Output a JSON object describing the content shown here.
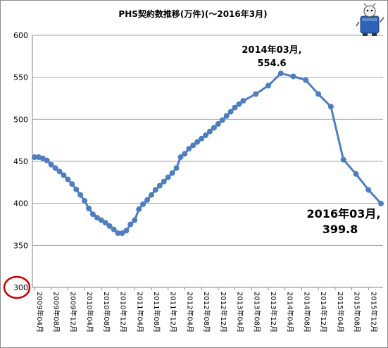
{
  "chart_data": {
    "type": "line",
    "title": "PHS契約数推移(万件)(～2016年3月)",
    "ylim": [
      300,
      600
    ],
    "yticks": [
      300,
      350,
      400,
      450,
      500,
      550,
      600
    ],
    "grid": "horizontal",
    "legend": "none",
    "x_labels": [
      "2009年04月",
      "2009年08月",
      "2009年12月",
      "2010年04月",
      "2010年08月",
      "2010年12月",
      "2011年04月",
      "2011年08月",
      "2011年12月",
      "2012年04月",
      "2012年08月",
      "2012年12月",
      "2013年04月",
      "2013年08月",
      "2013年12月",
      "2014年04月",
      "2014年08月",
      "2014年12月",
      "2015年04月",
      "2015年08月",
      "2015年12月"
    ],
    "series": [
      {
        "x": [
          "2009-04",
          "2009-05",
          "2009-06",
          "2009-07",
          "2009-08",
          "2009-09",
          "2009-10",
          "2009-11",
          "2009-12",
          "2010-01",
          "2010-02",
          "2010-03",
          "2010-04",
          "2010-05",
          "2010-06",
          "2010-07",
          "2010-08",
          "2010-09",
          "2010-10",
          "2010-11",
          "2010-12",
          "2011-01",
          "2011-02",
          "2011-03",
          "2011-04",
          "2011-05",
          "2011-06",
          "2011-07",
          "2011-08",
          "2011-09",
          "2011-10",
          "2011-11",
          "2011-12",
          "2012-01",
          "2012-02",
          "2012-03",
          "2012-04",
          "2012-05",
          "2012-06",
          "2012-07",
          "2012-08",
          "2012-09",
          "2012-10",
          "2012-11",
          "2012-12",
          "2013-01",
          "2013-02",
          "2013-03",
          "2013-04",
          "2013-05",
          "2013-06",
          "2013-09",
          "2013-12",
          "2014-03",
          "2014-06",
          "2014-09",
          "2014-12",
          "2015-03",
          "2015-06",
          "2015-09",
          "2015-12",
          "2016-03"
        ],
        "values": [
          455.0,
          455.0,
          453.5,
          451.0,
          446.0,
          442.0,
          438.0,
          433.5,
          428.5,
          423.0,
          416.5,
          410.0,
          403.0,
          394.0,
          387.0,
          383.0,
          380.0,
          377.0,
          373.0,
          369.0,
          364.5,
          364.5,
          367.5,
          375.0,
          380.0,
          393.0,
          399.0,
          404.0,
          410.0,
          416.0,
          421.0,
          426.0,
          431.0,
          436.0,
          442.0,
          455.0,
          459.0,
          465.0,
          469.0,
          473.0,
          477.0,
          481.0,
          485.5,
          490.0,
          494.5,
          499.0,
          504.0,
          509.0,
          514.0,
          518.0,
          522.0,
          530.0,
          540.0,
          554.6,
          551.0,
          546.5,
          530.0,
          515.0,
          452.0,
          435.0,
          416.0,
          399.8
        ]
      }
    ],
    "annotations": [
      {
        "line1": "2014年03月,",
        "line2": "554.6"
      },
      {
        "line1": "2016年03月,",
        "line2": "399.8"
      }
    ],
    "colors": {
      "line": "#4f7ec0",
      "grid": "#a6a6a6",
      "circle": "#cc0000"
    }
  },
  "logo": {
    "icon": "mascot-icon"
  }
}
